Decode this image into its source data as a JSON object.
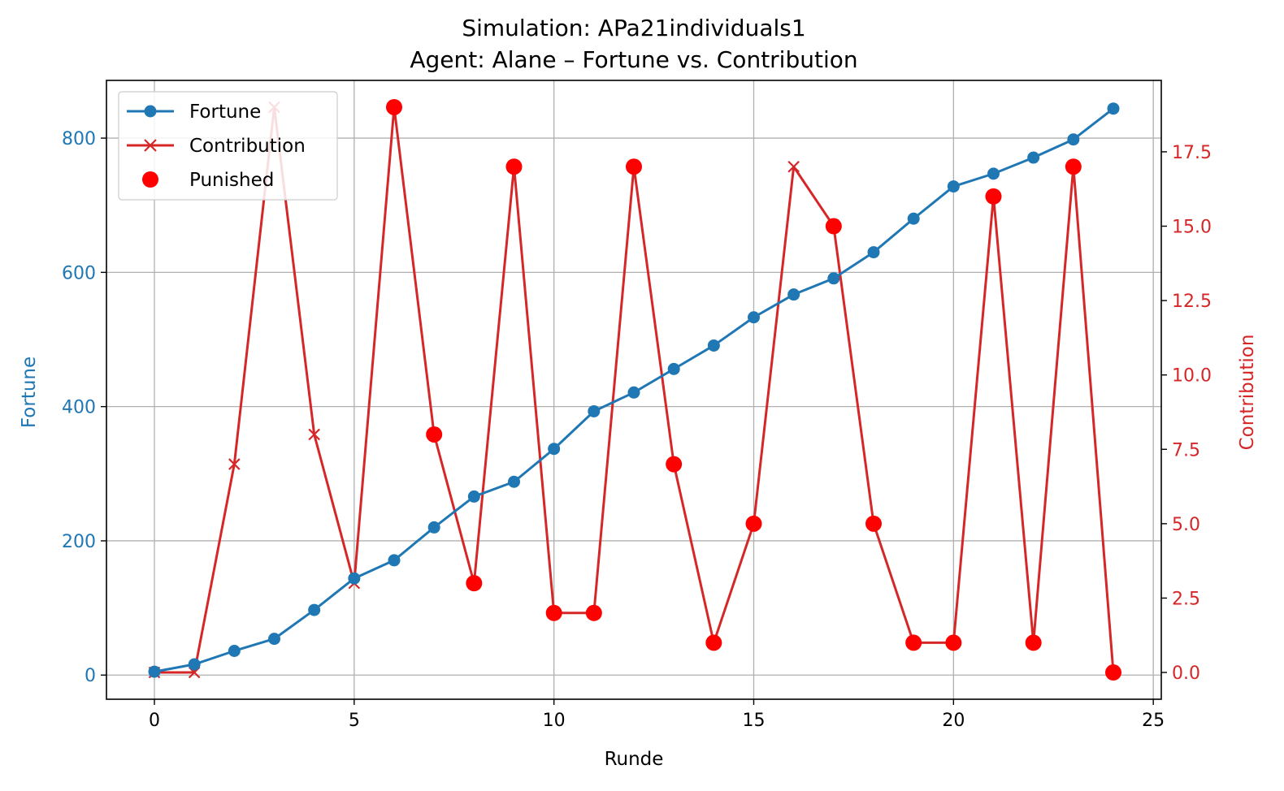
{
  "chart_data": {
    "type": "line",
    "title": "Simulation: APa21individuals1",
    "subtitle": "Agent: Alane – Fortune vs. Contribution",
    "xlabel": "Runde",
    "ylabel_left": "Fortune",
    "ylabel_right": "Contribution",
    "xlim": [
      -1.2,
      25.2
    ],
    "ylim_left": [
      -36,
      886
    ],
    "ylim_right": [
      -0.9,
      19.9
    ],
    "x_ticks": [
      0,
      5,
      10,
      15,
      20,
      25
    ],
    "y_left_ticks": [
      0,
      200,
      400,
      600,
      800
    ],
    "y_right_ticks": [
      "0.0",
      "2.5",
      "5.0",
      "7.5",
      "10.0",
      "12.5",
      "15.0",
      "17.5"
    ],
    "grid": true,
    "legend_position": "top-left",
    "colors": {
      "fortune": "#1f77b4",
      "contribution": "#d62728",
      "punished": "#ff0000"
    },
    "x": [
      0,
      1,
      2,
      3,
      4,
      5,
      6,
      7,
      8,
      9,
      10,
      11,
      12,
      13,
      14,
      15,
      16,
      17,
      18,
      19,
      20,
      21,
      22,
      23,
      24
    ],
    "series": [
      {
        "name": "Fortune",
        "axis": "left",
        "marker": "circle",
        "values": [
          5,
          16,
          36,
          54,
          97,
          144,
          171,
          220,
          266,
          288,
          337,
          393,
          421,
          456,
          491,
          533,
          567,
          591,
          630,
          680,
          728,
          747,
          771,
          798,
          844
        ]
      },
      {
        "name": "Contribution",
        "axis": "right",
        "marker": "x",
        "values": [
          0,
          0,
          7,
          19,
          8,
          3,
          19,
          8,
          3,
          17,
          2,
          2,
          17,
          7,
          1,
          5,
          17,
          15,
          5,
          1,
          1,
          16,
          1,
          17,
          0
        ]
      }
    ],
    "punished": {
      "name": "Punished",
      "x": [
        6,
        7,
        8,
        9,
        10,
        11,
        12,
        13,
        14,
        15,
        17,
        18,
        19,
        20,
        21,
        22,
        23,
        24
      ],
      "values": [
        19,
        8,
        3,
        17,
        2,
        2,
        17,
        7,
        1,
        5,
        15,
        5,
        1,
        1,
        16,
        1,
        17,
        0
      ]
    }
  }
}
